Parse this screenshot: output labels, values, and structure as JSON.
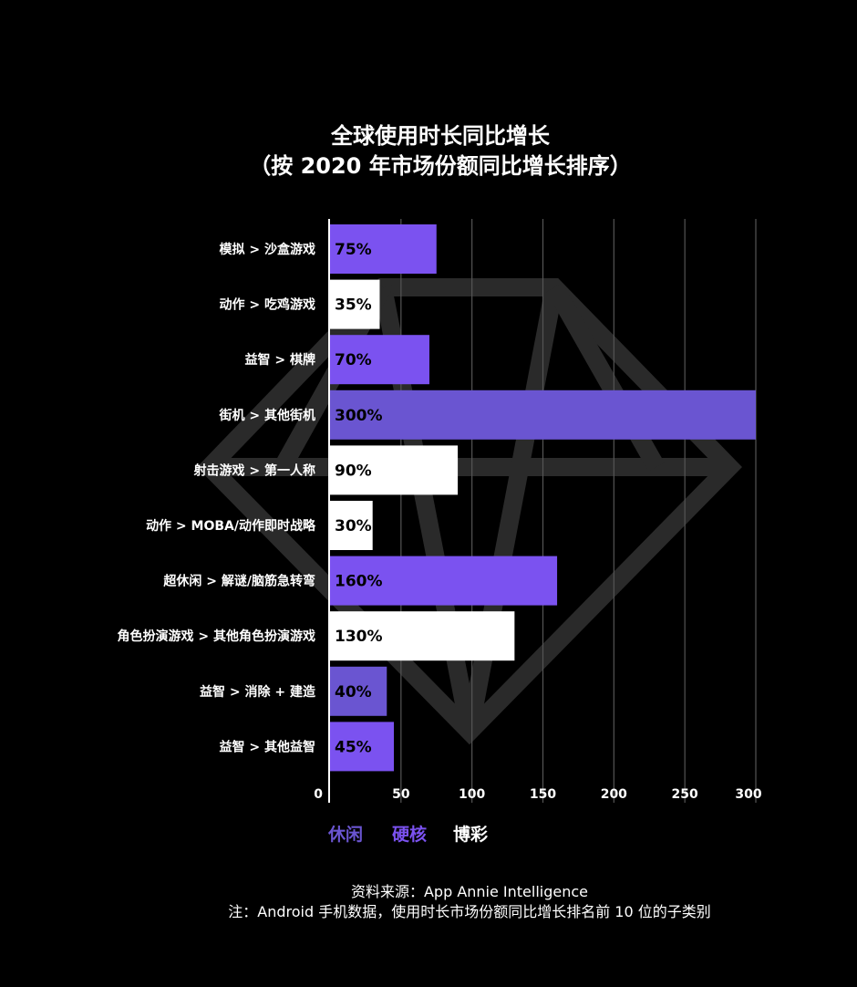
{
  "chart_data": {
    "type": "bar",
    "orientation": "horizontal",
    "title": [
      "全球使用时长同比增长",
      "（按 2020 年市场份额同比增长排序）"
    ],
    "categories": [
      "模拟 > 沙盒游戏",
      "动作 > 吃鸡游戏",
      "益智 > 棋牌",
      "街机 > 其他街机",
      "射击游戏 > 第一人称",
      "动作 > MOBA/动作即时战略",
      "超休闲 > 解谜/脑筋急转弯",
      "角色扮演游戏 > 其他角色扮演游戏",
      "益智 > 消除 + 建造",
      "益智 > 其他益智"
    ],
    "values": [
      75,
      35,
      70,
      300,
      90,
      30,
      160,
      130,
      40,
      45
    ],
    "data_labels": [
      "75%",
      "35%",
      "70%",
      "300%",
      "90%",
      "30%",
      "160%",
      "130%",
      "40%",
      "45%"
    ],
    "groups": [
      "hardcore",
      "gambling",
      "hardcore",
      "casual",
      "gambling",
      "gambling",
      "hardcore",
      "gambling",
      "casual",
      "hardcore"
    ],
    "xlim": [
      0,
      300
    ],
    "xticks": [
      0,
      50,
      100,
      150,
      200,
      250,
      300
    ],
    "grid": true,
    "legend": {
      "placement": "bottom",
      "entries": [
        {
          "key": "casual",
          "label": "休闲",
          "color": "#6a55d1"
        },
        {
          "key": "hardcore",
          "label": "硬核",
          "color": "#7b52f0"
        },
        {
          "key": "gambling",
          "label": "博彩",
          "color": "#ffffff"
        }
      ]
    },
    "colors": {
      "casual": "#6a55d1",
      "hardcore": "#7b52f0",
      "gambling": "#ffffff",
      "label_on_white": "#000000",
      "label_on_purple": "#000000",
      "grid": "#555555",
      "watermark": "#2a2a2a"
    }
  },
  "footer": {
    "source": "资料来源：App Annie Intelligence",
    "note": "注：Android 手机数据，使用时长市场份额同比增长排名前 10 位的子类别"
  },
  "watermark": {
    "icon": "diamond-icon"
  }
}
